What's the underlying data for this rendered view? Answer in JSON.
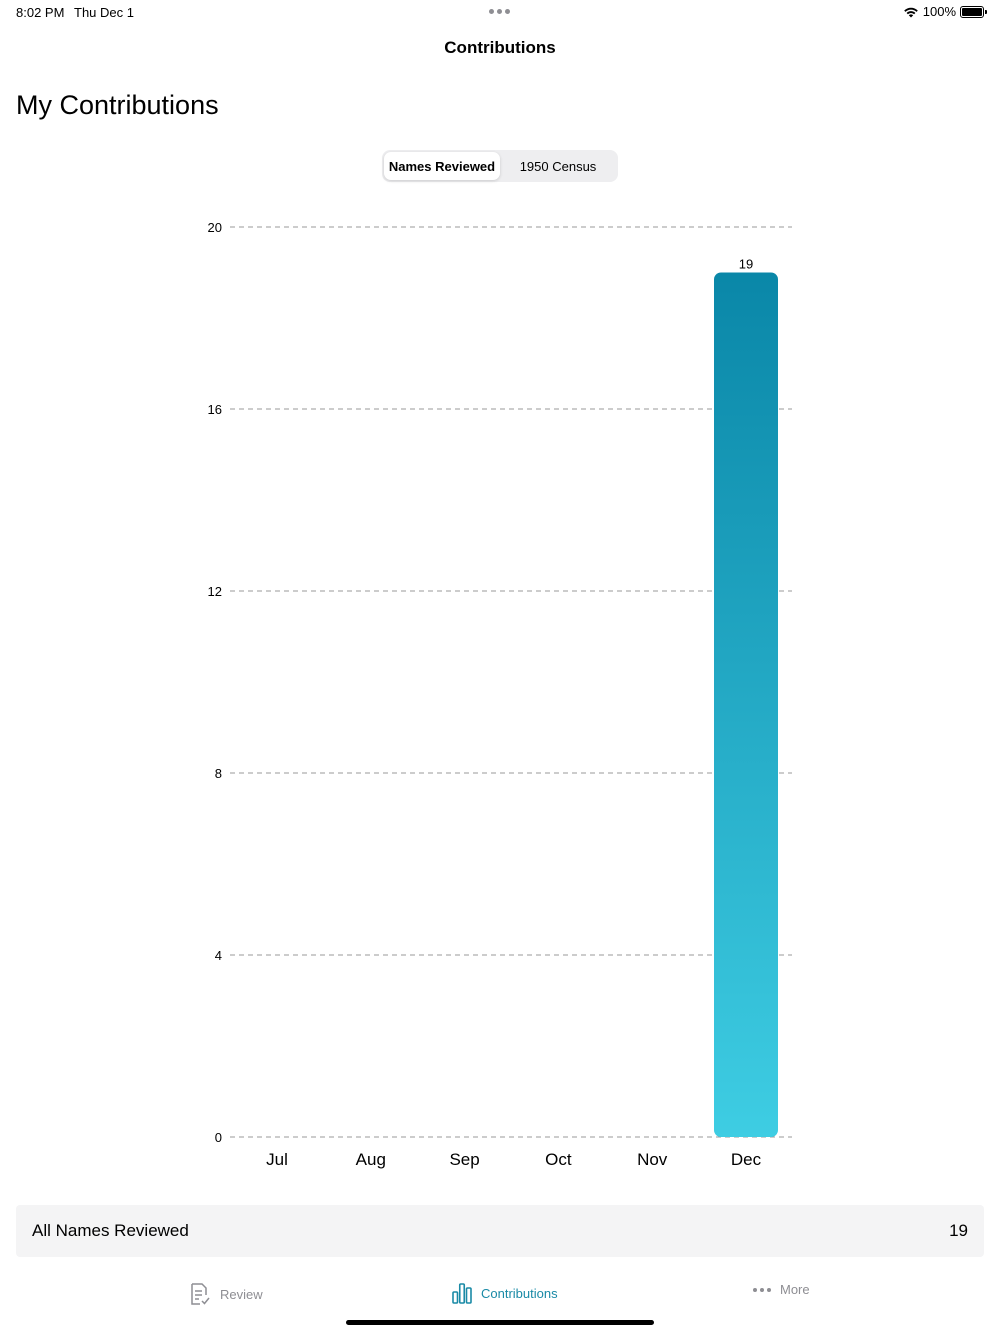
{
  "status_bar": {
    "time": "8:02 PM",
    "date": "Thu Dec 1",
    "battery_percent": "100%",
    "icons": [
      "wifi-icon",
      "battery-icon",
      "multitask-dots-icon"
    ]
  },
  "nav": {
    "title": "Contributions",
    "large_title": "My Contributions"
  },
  "segmented_control": {
    "options": [
      "Names Reviewed",
      "1950 Census"
    ],
    "selected": "Names Reviewed"
  },
  "chart_data": {
    "type": "bar",
    "categories": [
      "Jul",
      "Aug",
      "Sep",
      "Oct",
      "Nov",
      "Dec"
    ],
    "values": [
      0,
      0,
      0,
      0,
      0,
      19
    ],
    "data_labels": [
      "",
      "",
      "",
      "",
      "",
      "19"
    ],
    "title": "",
    "xlabel": "",
    "ylabel": "",
    "ylim": [
      0,
      20
    ],
    "yticks": [
      0,
      4,
      8,
      12,
      16,
      20
    ],
    "grid": "horizontal-dashed",
    "bar_gradient": {
      "top": "#0a87a8",
      "bottom": "#3ecde3"
    },
    "grid_color": "#9a9a9a"
  },
  "summary": {
    "label": "All Names Reviewed",
    "value": "19"
  },
  "tab_bar": {
    "tabs": [
      {
        "label": "Review",
        "icon": "review-document-icon",
        "active": false
      },
      {
        "label": "Contributions",
        "icon": "bar-chart-icon",
        "active": true
      },
      {
        "label": "More",
        "icon": "more-dots-icon",
        "active": false
      }
    ],
    "active_color": "#1a8aa6",
    "inactive_color": "#8e8e93"
  }
}
